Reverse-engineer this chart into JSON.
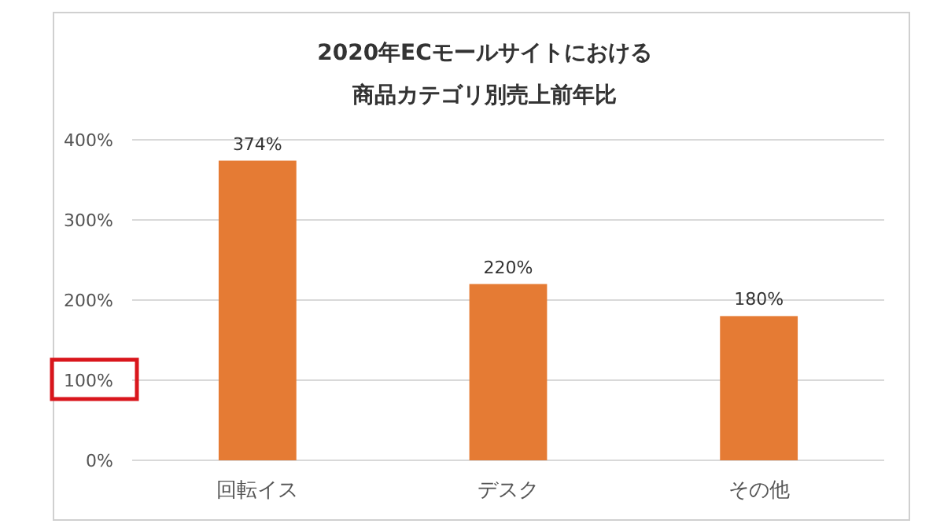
{
  "chart_data": {
    "type": "bar",
    "title": "2020年ECモールサイトにおける",
    "subtitle": "商品カテゴリ別売上前年比",
    "categories": [
      "回転イス",
      "デスク",
      "その他"
    ],
    "values": [
      374,
      220,
      180
    ],
    "value_labels": [
      "374%",
      "220%",
      "180%"
    ],
    "color": "#e57b34",
    "ylim": [
      0,
      400
    ],
    "yticks": [
      {
        "value": 0,
        "label": "0%"
      },
      {
        "value": 100,
        "label": "100%"
      },
      {
        "value": 200,
        "label": "200%"
      },
      {
        "value": 300,
        "label": "300%"
      },
      {
        "value": 400,
        "label": "400%"
      }
    ],
    "grid": "y"
  }
}
